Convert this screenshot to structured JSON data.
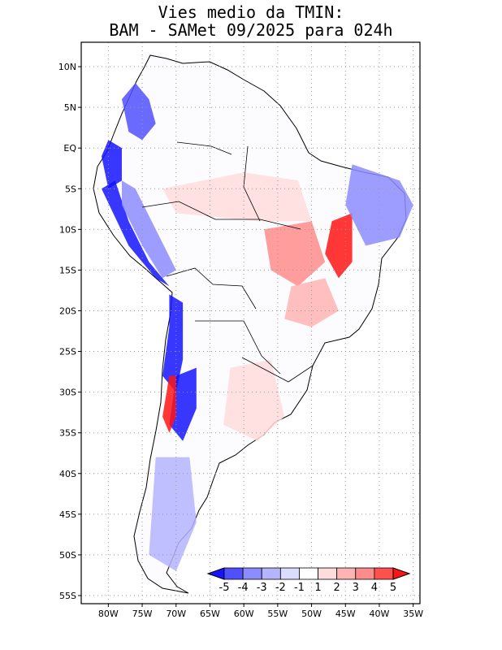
{
  "title": {
    "line1": "Vies medio da TMIN:",
    "line2": "BAM - SAMet 09/2025  para 024h"
  },
  "axes": {
    "lat_labels": [
      "10N",
      "5N",
      "EQ",
      "5S",
      "10S",
      "15S",
      "20S",
      "25S",
      "30S",
      "35S",
      "40S",
      "45S",
      "50S",
      "55S"
    ],
    "lat_values": [
      10,
      5,
      0,
      -5,
      -10,
      -15,
      -20,
      -25,
      -30,
      -35,
      -40,
      -45,
      -50,
      -55
    ],
    "lon_labels": [
      "80W",
      "75W",
      "70W",
      "65W",
      "60W",
      "55W",
      "50W",
      "45W",
      "40W",
      "35W"
    ],
    "lon_values": [
      -80,
      -75,
      -70,
      -65,
      -60,
      -55,
      -50,
      -45,
      -40,
      -35
    ],
    "lon_range": [
      -84,
      -34
    ],
    "lat_range": [
      -56,
      13
    ]
  },
  "colorbar": {
    "labels": [
      "-5",
      "-4",
      "-3",
      "-2",
      "-1",
      "1",
      "2",
      "3",
      "4",
      "5"
    ],
    "colors": [
      "#1414ff",
      "#5050ff",
      "#8c8cff",
      "#b4b4ff",
      "#dcdcff",
      "#ffffff",
      "#ffdcdc",
      "#ffb4b4",
      "#ff8c8c",
      "#ff5050",
      "#ff1414"
    ]
  },
  "regions": [
    {
      "name": "colombia-cold",
      "color": "#5050ff",
      "pts": [
        [
          -78,
          6
        ],
        [
          -76,
          8
        ],
        [
          -74,
          6
        ],
        [
          -73,
          3
        ],
        [
          -75,
          1
        ],
        [
          -77,
          2
        ]
      ]
    },
    {
      "name": "ecuador-cold",
      "color": "#1414ff",
      "pts": [
        [
          -81,
          -1
        ],
        [
          -80,
          1
        ],
        [
          -78,
          0
        ],
        [
          -78,
          -4
        ],
        [
          -80,
          -5
        ]
      ]
    },
    {
      "name": "peru-coast-cold",
      "color": "#1414ff",
      "pts": [
        [
          -81,
          -5
        ],
        [
          -79,
          -4
        ],
        [
          -77,
          -9
        ],
        [
          -74,
          -14
        ],
        [
          -71,
          -17
        ],
        [
          -73,
          -16
        ],
        [
          -77,
          -12
        ]
      ]
    },
    {
      "name": "andes-peru-cold",
      "color": "#8c8cff",
      "pts": [
        [
          -78,
          -4
        ],
        [
          -76,
          -5
        ],
        [
          -73,
          -10
        ],
        [
          -70,
          -15
        ],
        [
          -72,
          -16
        ],
        [
          -75,
          -12
        ],
        [
          -78,
          -7
        ]
      ]
    },
    {
      "name": "chile-north-cold",
      "color": "#1414ff",
      "pts": [
        [
          -71,
          -18
        ],
        [
          -69,
          -19
        ],
        [
          -69,
          -26
        ],
        [
          -70,
          -30
        ],
        [
          -72,
          -28
        ],
        [
          -71,
          -22
        ]
      ]
    },
    {
      "name": "chile-central-cold",
      "color": "#1414ff",
      "pts": [
        [
          -70,
          -28
        ],
        [
          -67,
          -27
        ],
        [
          -67,
          -32
        ],
        [
          -69,
          -36
        ],
        [
          -71,
          -34
        ]
      ]
    },
    {
      "name": "chile-warm",
      "color": "#ff1414",
      "pts": [
        [
          -71,
          -28
        ],
        [
          -70,
          -28
        ],
        [
          -70,
          -33
        ],
        [
          -71,
          -35
        ],
        [
          -72,
          -33
        ]
      ]
    },
    {
      "name": "patagonia-cold",
      "color": "#b4b4ff",
      "pts": [
        [
          -73,
          -38
        ],
        [
          -68,
          -38
        ],
        [
          -67,
          -46
        ],
        [
          -70,
          -52
        ],
        [
          -74,
          -50
        ]
      ]
    },
    {
      "name": "brazil-central-warm",
      "color": "#ff8c8c",
      "pts": [
        [
          -57,
          -10
        ],
        [
          -50,
          -9
        ],
        [
          -48,
          -14
        ],
        [
          -52,
          -17
        ],
        [
          -56,
          -15
        ]
      ]
    },
    {
      "name": "tocantins-warm",
      "color": "#ff1414",
      "pts": [
        [
          -47,
          -9
        ],
        [
          -44,
          -8
        ],
        [
          -44,
          -14
        ],
        [
          -46,
          -16
        ],
        [
          -48,
          -13
        ]
      ]
    },
    {
      "name": "amazon-warm",
      "color": "#ffdcdc",
      "pts": [
        [
          -72,
          -5
        ],
        [
          -60,
          -3
        ],
        [
          -52,
          -4
        ],
        [
          -50,
          -9
        ],
        [
          -58,
          -9
        ],
        [
          -70,
          -8
        ]
      ]
    },
    {
      "name": "northeast-cold",
      "color": "#8c8cff",
      "pts": [
        [
          -44,
          -2
        ],
        [
          -37,
          -4
        ],
        [
          -35,
          -7
        ],
        [
          -37,
          -11
        ],
        [
          -42,
          -12
        ],
        [
          -45,
          -7
        ]
      ]
    },
    {
      "name": "goias-warm",
      "color": "#ffb4b4",
      "pts": [
        [
          -53,
          -17
        ],
        [
          -48,
          -16
        ],
        [
          -46,
          -20
        ],
        [
          -50,
          -22
        ],
        [
          -54,
          -21
        ]
      ]
    },
    {
      "name": "south-warm",
      "color": "#ffdcdc",
      "pts": [
        [
          -62,
          -27
        ],
        [
          -56,
          -26
        ],
        [
          -54,
          -33
        ],
        [
          -58,
          -36
        ],
        [
          -63,
          -34
        ]
      ]
    }
  ]
}
